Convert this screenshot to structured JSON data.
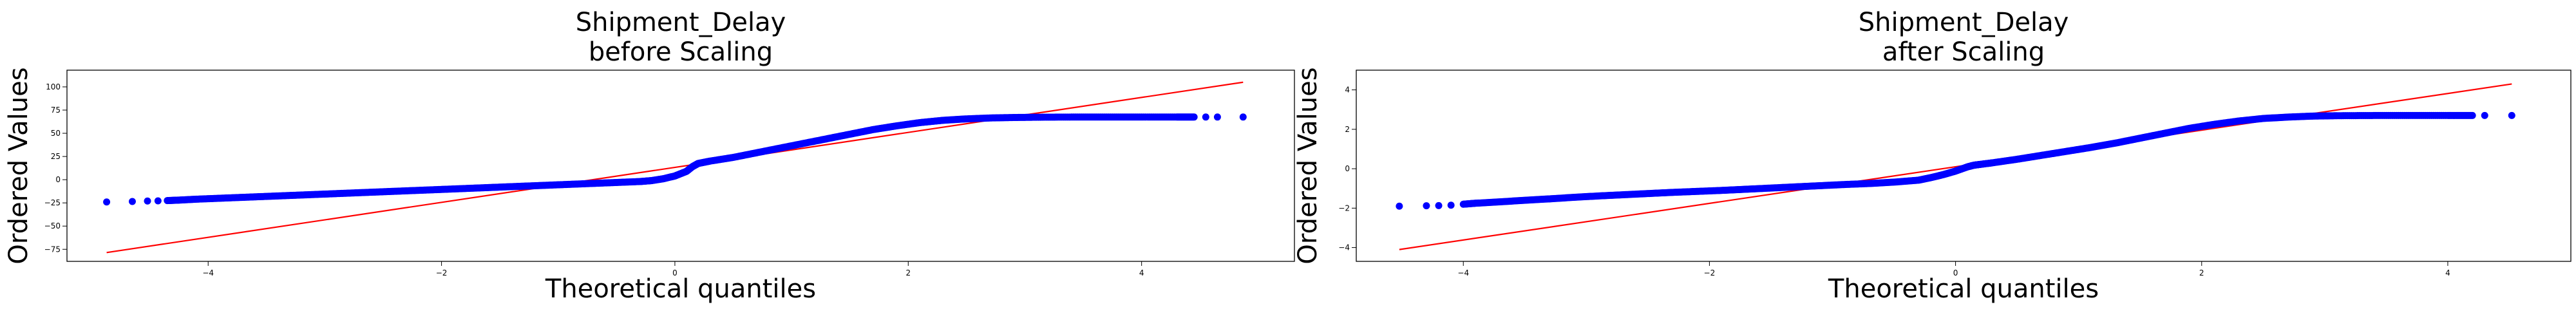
{
  "chart_data": [
    {
      "type": "scatter",
      "title": "Shipment_Delay\nbefore Scaling",
      "xlabel": "Theoretical quantiles",
      "ylabel": "Ordered Values",
      "xlim": [
        -5.21,
        5.31
      ],
      "ylim": [
        -88,
        118
      ],
      "xticks": [
        -4,
        -2,
        0,
        2,
        4
      ],
      "yticks": [
        -75,
        -50,
        -25,
        0,
        25,
        50,
        75,
        100
      ],
      "grid": false,
      "fit_line": {
        "x": [
          -4.87,
          4.87
        ],
        "y": [
          -78.5,
          105.0
        ]
      },
      "points": {
        "x": [
          -4.87,
          -4.65,
          -4.52,
          -4.43,
          -4.35,
          -4.25,
          -4.1,
          -3.9,
          -3.7,
          -3.5,
          -3.3,
          -3.1,
          -2.9,
          -2.7,
          -2.5,
          -2.3,
          -2.1,
          -1.9,
          -1.7,
          -1.5,
          -1.3,
          -1.1,
          -0.9,
          -0.7,
          -0.5,
          -0.3,
          -0.2,
          -0.1,
          0.0,
          0.1,
          0.15,
          0.2,
          0.3,
          0.5,
          0.7,
          0.9,
          1.1,
          1.3,
          1.5,
          1.7,
          1.9,
          2.1,
          2.3,
          2.5,
          2.7,
          2.9,
          3.1,
          3.4,
          3.7,
          4.0,
          4.3,
          4.45,
          4.55,
          4.65,
          4.87
        ],
        "y": [
          -24.0,
          -23.5,
          -23.0,
          -22.8,
          -22.5,
          -22.0,
          -21.0,
          -20.0,
          -19.0,
          -18.0,
          -17.0,
          -16.0,
          -15.0,
          -14.0,
          -13.0,
          -12.0,
          -11.0,
          -10.0,
          -9.0,
          -8.0,
          -7.0,
          -6.0,
          -5.0,
          -4.0,
          -3.0,
          -2.0,
          -1.0,
          1.0,
          4.0,
          9.0,
          14.0,
          17.5,
          20.0,
          24.0,
          29.0,
          34.0,
          39.0,
          44.0,
          49.0,
          54.0,
          58.0,
          61.5,
          64.0,
          65.5,
          66.5,
          67.0,
          67.3,
          67.5,
          67.5,
          67.5,
          67.5,
          67.5,
          67.5,
          67.5,
          67.5
        ]
      },
      "point_color": "#0000ff",
      "line_color": "#ff0000"
    },
    {
      "type": "scatter",
      "title": "Shipment_Delay\nafter Scaling",
      "xlabel": "Theoretical quantiles",
      "ylabel": "Ordered Values",
      "xlim": [
        -4.87,
        5.0
      ],
      "ylim": [
        -4.7,
        5.0
      ],
      "xticks": [
        -4,
        -2,
        0,
        2,
        4
      ],
      "yticks": [
        -4,
        -2,
        0,
        2,
        4
      ],
      "grid": false,
      "fit_line": {
        "x": [
          -4.52,
          4.52
        ],
        "y": [
          -4.1,
          4.3
        ]
      },
      "points": {
        "x": [
          -4.52,
          -4.3,
          -4.2,
          -4.1,
          -4.0,
          -3.9,
          -3.7,
          -3.5,
          -3.3,
          -3.1,
          -2.9,
          -2.7,
          -2.5,
          -2.3,
          -2.1,
          -1.9,
          -1.7,
          -1.5,
          -1.3,
          -1.1,
          -0.9,
          -0.7,
          -0.5,
          -0.3,
          -0.2,
          -0.1,
          0.0,
          0.1,
          0.15,
          0.2,
          0.3,
          0.5,
          0.7,
          0.9,
          1.1,
          1.3,
          1.5,
          1.7,
          1.9,
          2.1,
          2.3,
          2.5,
          2.7,
          2.9,
          3.1,
          3.4,
          3.7,
          4.0,
          4.2,
          4.3,
          4.52
        ],
        "y": [
          -1.9,
          -1.88,
          -1.87,
          -1.85,
          -1.8,
          -1.75,
          -1.68,
          -1.6,
          -1.53,
          -1.45,
          -1.38,
          -1.32,
          -1.26,
          -1.2,
          -1.15,
          -1.1,
          -1.04,
          -0.98,
          -0.92,
          -0.86,
          -0.8,
          -0.75,
          -0.68,
          -0.58,
          -0.45,
          -0.3,
          -0.12,
          0.1,
          0.18,
          0.22,
          0.3,
          0.48,
          0.68,
          0.88,
          1.08,
          1.3,
          1.55,
          1.8,
          2.05,
          2.25,
          2.42,
          2.55,
          2.62,
          2.67,
          2.69,
          2.7,
          2.7,
          2.7,
          2.7,
          2.7,
          2.7
        ]
      },
      "point_color": "#0000ff",
      "line_color": "#ff0000"
    }
  ]
}
